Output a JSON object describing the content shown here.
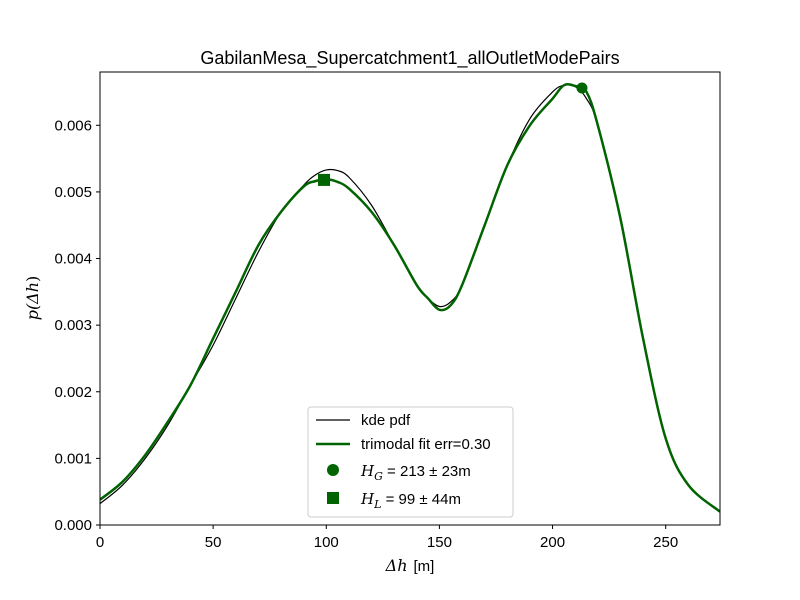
{
  "chart_data": {
    "type": "line",
    "title": "GabilanMesa_Supercatchment1_allOutletModePairs",
    "xlabel": {
      "symbol": "Δh",
      "unit": "[m]"
    },
    "ylabel": {
      "pre": "p(",
      "symbol": "Δh",
      "post": ")"
    },
    "xlim": [
      0,
      274
    ],
    "ylim": [
      0,
      0.0068
    ],
    "xticks": [
      0,
      50,
      100,
      150,
      200,
      250
    ],
    "xtick_labels": [
      "0",
      "50",
      "100",
      "150",
      "200",
      "250"
    ],
    "yticks": [
      0,
      0.001,
      0.002,
      0.003,
      0.004,
      0.005,
      0.006
    ],
    "ytick_labels": [
      "0.000",
      "0.001",
      "0.002",
      "0.003",
      "0.004",
      "0.005",
      "0.006"
    ],
    "grid": false,
    "legend_position": "lower-center",
    "series": [
      {
        "name": "kde pdf",
        "color": "#000000",
        "style": "line",
        "x": [
          0,
          10,
          20,
          30,
          40,
          50,
          60,
          70,
          80,
          90,
          95,
          100,
          105,
          110,
          120,
          130,
          140,
          145,
          150,
          155,
          160,
          170,
          180,
          190,
          200,
          205,
          210,
          215,
          220,
          230,
          240,
          250,
          260,
          274
        ],
        "y": [
          0.00032,
          0.0006,
          0.001,
          0.0015,
          0.0021,
          0.0027,
          0.0034,
          0.0041,
          0.0047,
          0.0051,
          0.00525,
          0.00533,
          0.00532,
          0.00522,
          0.0048,
          0.0042,
          0.0036,
          0.0034,
          0.00328,
          0.00335,
          0.0036,
          0.0045,
          0.0054,
          0.0061,
          0.0065,
          0.0066,
          0.00658,
          0.0064,
          0.006,
          0.0046,
          0.0028,
          0.0013,
          0.0006,
          0.0002
        ]
      },
      {
        "name": "trimodal fit err=0.30",
        "color": "#006400",
        "style": "line",
        "x": [
          0,
          10,
          20,
          30,
          40,
          50,
          60,
          70,
          80,
          90,
          95,
          100,
          105,
          110,
          120,
          130,
          140,
          145,
          150,
          155,
          160,
          170,
          180,
          190,
          200,
          205,
          210,
          215,
          220,
          230,
          240,
          250,
          260,
          274
        ],
        "y": [
          0.00038,
          0.00065,
          0.00105,
          0.00155,
          0.0021,
          0.0028,
          0.0035,
          0.0042,
          0.0047,
          0.00508,
          0.00516,
          0.00519,
          0.00515,
          0.00505,
          0.0047,
          0.0042,
          0.0036,
          0.0034,
          0.00323,
          0.0033,
          0.0036,
          0.0045,
          0.0054,
          0.006,
          0.0064,
          0.0066,
          0.00659,
          0.0065,
          0.006,
          0.0046,
          0.0028,
          0.0013,
          0.0006,
          0.0002
        ]
      }
    ],
    "markers": [
      {
        "name": "H_G",
        "symbol": "H",
        "subscript": "G",
        "text": " = 213 ± 23m",
        "shape": "circle",
        "color": "#006400",
        "x": 213,
        "y": 0.00656
      },
      {
        "name": "H_L",
        "symbol": "H",
        "subscript": "L",
        "text": " = 99 ± 44m",
        "shape": "square",
        "color": "#006400",
        "x": 99,
        "y": 0.00518
      }
    ]
  }
}
